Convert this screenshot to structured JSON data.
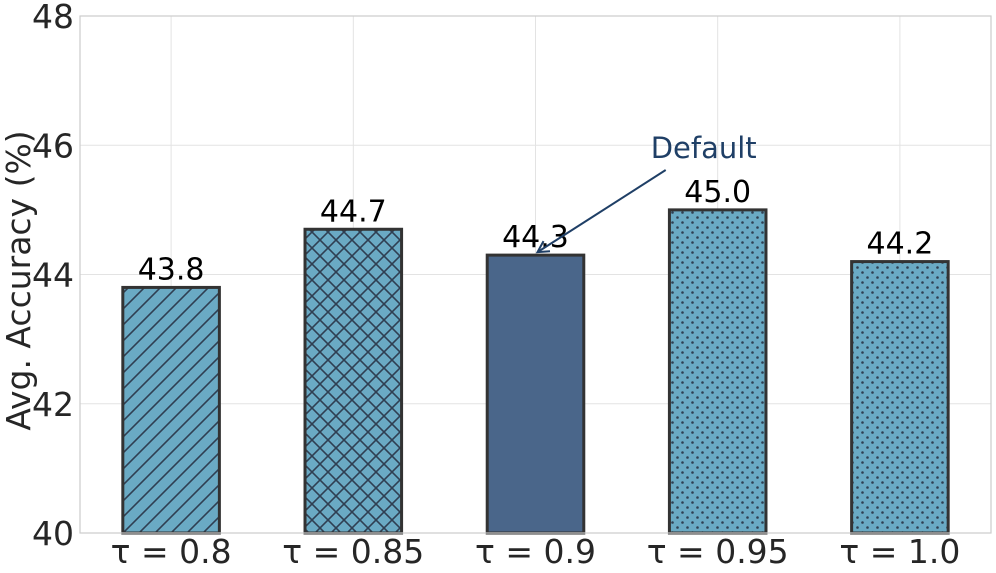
{
  "chart_data": {
    "type": "bar",
    "title": "",
    "xlabel": "",
    "ylabel": "Avg. Accuracy (%)",
    "ylim": [
      40,
      48
    ],
    "yticks": [
      40,
      42,
      44,
      46,
      48
    ],
    "grid": true,
    "categories": [
      "τ = 0.8",
      "τ = 0.85",
      "τ = 0.9",
      "τ = 0.95",
      "τ = 1.0"
    ],
    "values": [
      43.8,
      44.7,
      44.3,
      45.0,
      44.2
    ],
    "value_labels": [
      "43.8",
      "44.7",
      "44.3",
      "45.0",
      "44.2"
    ],
    "patterns": [
      "diagonal",
      "crosshatch",
      "solid",
      "dots",
      "dots"
    ],
    "colors": {
      "bar": "#6aaac4",
      "highlight": "#4a668a",
      "edge": "#333333",
      "hatch": "#2f3f52",
      "annotation": "#1f3f66"
    },
    "annotation": {
      "text": "Default",
      "category_index": 2
    }
  }
}
